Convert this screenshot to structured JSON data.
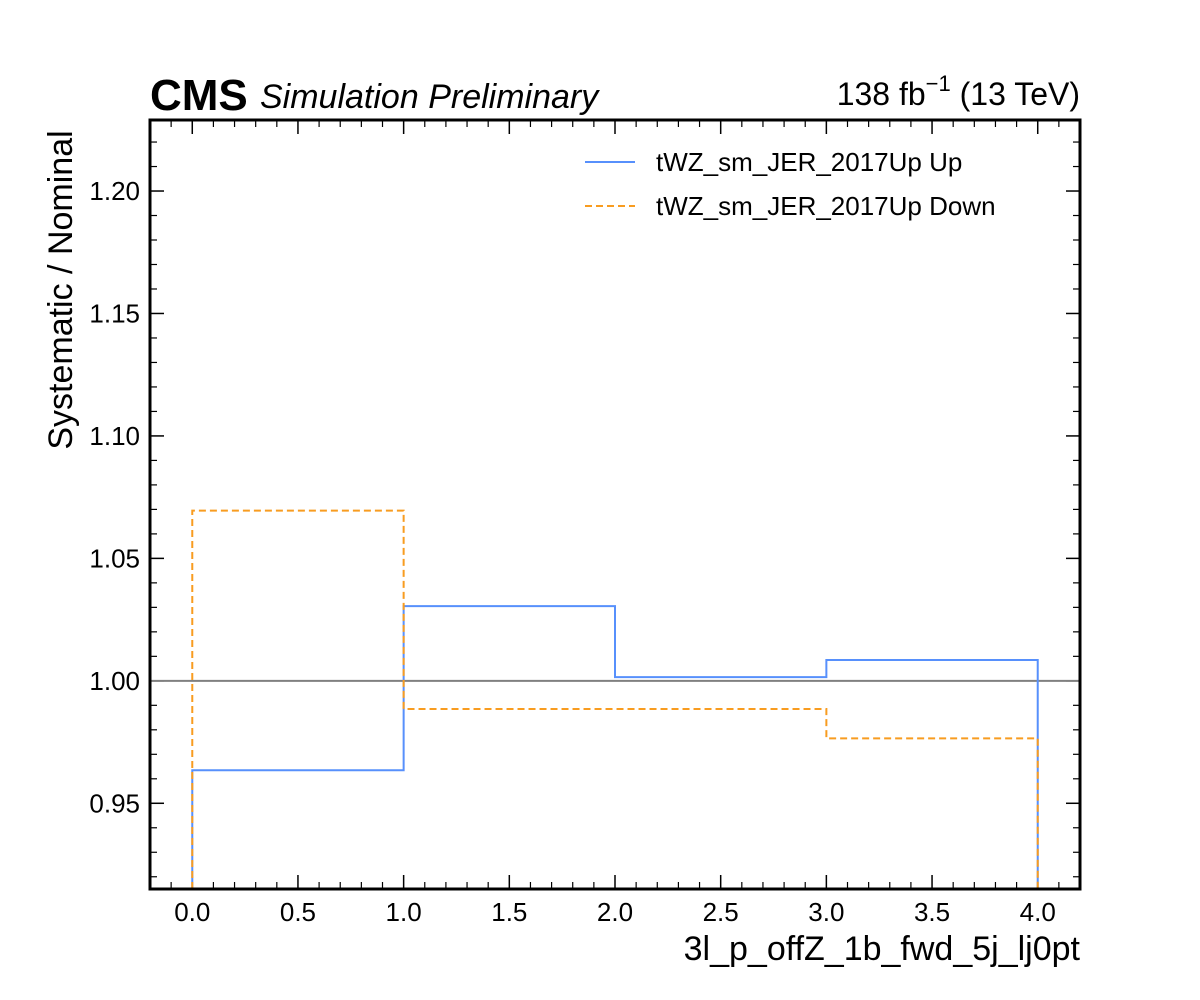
{
  "header": {
    "experiment": "CMS",
    "status": "Simulation Preliminary",
    "lumi_value": "138 fb",
    "lumi_exp": "−1",
    "lumi_energy": " (13 TeV)"
  },
  "chart_data": {
    "type": "line",
    "xlabel": "3l_p_offZ_1b_fwd_5j_lj0pt",
    "ylabel": "Systematic / Nominal",
    "xlim": [
      -0.2,
      4.2
    ],
    "ylim": [
      0.915,
      1.229
    ],
    "x_ticks": [
      "0.0",
      "0.5",
      "1.0",
      "1.5",
      "2.0",
      "2.5",
      "3.0",
      "3.5",
      "4.0"
    ],
    "y_ticks": [
      "0.95",
      "1.00",
      "1.05",
      "1.10",
      "1.15",
      "1.20"
    ],
    "reference_line": 1.0,
    "bin_edges": [
      0,
      1,
      2,
      3,
      4
    ],
    "grid": false,
    "legend_position": "top-right",
    "series": [
      {
        "name": "tWZ_sm_JER_2017Up Up",
        "values": [
          0.9635,
          1.0305,
          1.0015,
          1.0085
        ],
        "color": "#5790fc",
        "style": "solid"
      },
      {
        "name": "tWZ_sm_JER_2017Up Down",
        "values": [
          1.0695,
          0.9885,
          0.9885,
          0.9765
        ],
        "color": "#f89c20",
        "style": "dashed"
      }
    ]
  },
  "colors": {
    "reference_line": "#808080",
    "frame": "#000000"
  }
}
